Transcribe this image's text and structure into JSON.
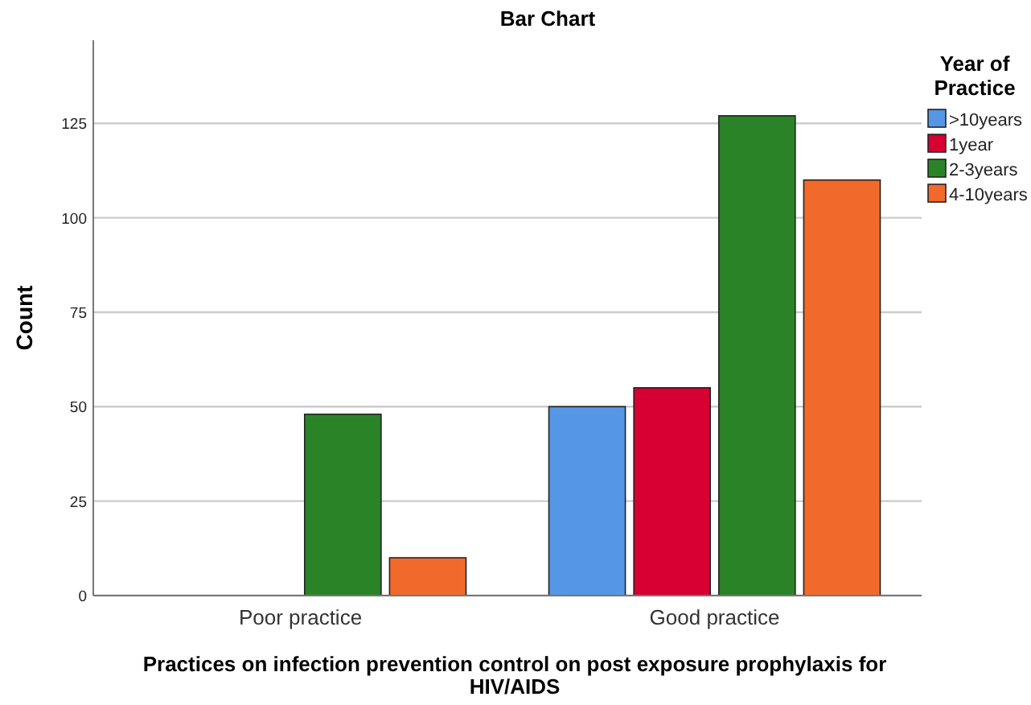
{
  "chart_data": {
    "type": "bar",
    "title": "Bar Chart",
    "xlabel": "Practices on infection prevention control on post exposure prophylaxis for HIV/AIDS",
    "ylabel": "Count",
    "legend_title": "Year of Practice",
    "categories": [
      "Poor practice",
      "Good practice"
    ],
    "series": [
      {
        "name": ">10years",
        "color": "#5596e6",
        "values": [
          null,
          50
        ]
      },
      {
        "name": "1year",
        "color": "#d60032",
        "values": [
          null,
          55
        ]
      },
      {
        "name": "2-3years",
        "color": "#2a8427",
        "values": [
          48,
          127
        ]
      },
      {
        "name": "4-10years",
        "color": "#f26a2b",
        "values": [
          10,
          110
        ]
      }
    ],
    "ylim": [
      0,
      147
    ],
    "yticks": [
      0,
      25,
      50,
      75,
      100,
      125
    ],
    "grid": "y",
    "legend": "right"
  }
}
